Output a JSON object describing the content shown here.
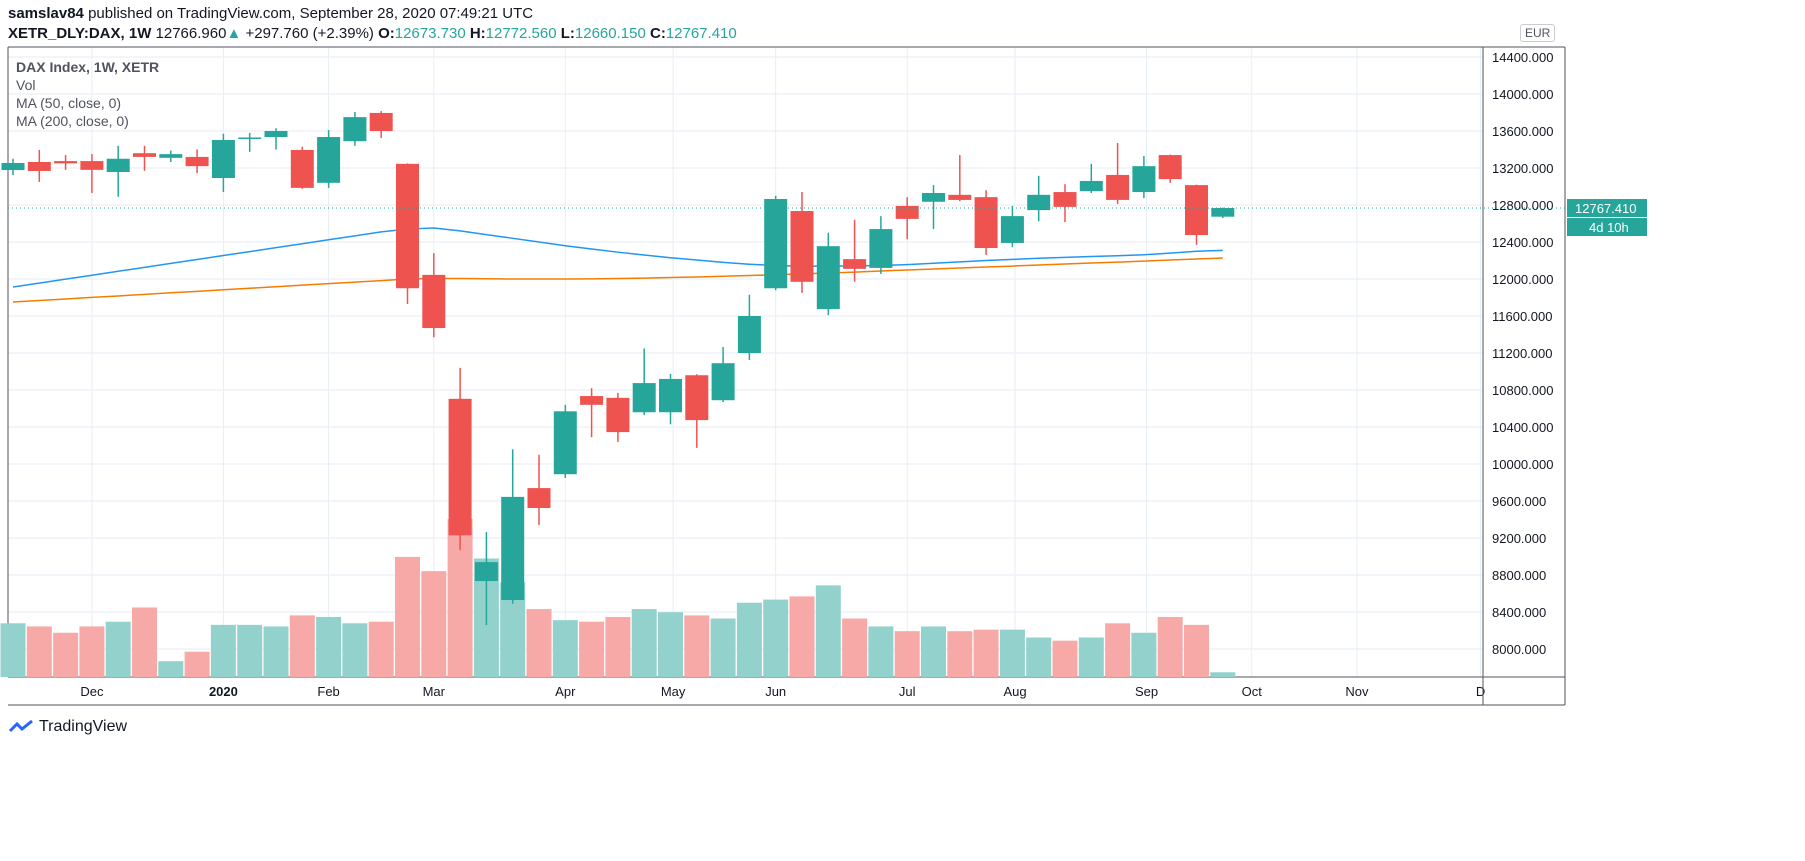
{
  "header": {
    "author": "samslav84",
    "published_text": "published on TradingView.com, September 28, 2020 07:49:21 UTC",
    "symbol": "XETR_DLY:DAX, 1W",
    "last": "12766.960",
    "change": "+297.760 (+2.39%)",
    "o_label": "O:",
    "o": "12673.730",
    "h_label": "H:",
    "h": "12772.560",
    "l_label": "L:",
    "l": "12660.150",
    "c_label": "C:",
    "c": "12767.410",
    "up_icon": "triangle-up-icon"
  },
  "legend": {
    "title": "DAX Index, 1W, XETR",
    "vol": "Vol",
    "ma50": "MA (50, close, 0)",
    "ma200": "MA (200, close, 0)"
  },
  "currency": "EUR",
  "last_price_label": "12767.410",
  "countdown": "4d 10h",
  "footer": {
    "brand": "TradingView"
  },
  "colors": {
    "up": "#26a69a",
    "down": "#ef5350",
    "vol_up": "#93d2cc",
    "vol_down": "#f7a9a7",
    "ma50": "#2196f3",
    "ma200": "#f57c00",
    "grid": "#e6eef5"
  },
  "chart_data": {
    "type": "candlestick",
    "interval": "1W",
    "ylim": [
      7698,
      14508
    ],
    "y_ticks": [
      "14400.000",
      "14000.000",
      "13600.000",
      "13200.000",
      "12800.000",
      "12400.000",
      "12000.000",
      "11600.000",
      "11200.000",
      "10800.000",
      "10400.000",
      "10000.000",
      "9600.000",
      "9200.000",
      "8800.000",
      "8400.000",
      "8000.000"
    ],
    "y_tick_values": [
      14400,
      14000,
      13600,
      13200,
      12800,
      12400,
      12000,
      11600,
      11200,
      10800,
      10400,
      10000,
      9600,
      9200,
      8800,
      8400,
      8000
    ],
    "x_ticks": [
      {
        "label": "Dec",
        "bar": 3
      },
      {
        "label": "2020",
        "bar": 8,
        "bold": true
      },
      {
        "label": "Feb",
        "bar": 12
      },
      {
        "label": "Mar",
        "bar": 16
      },
      {
        "label": "Apr",
        "bar": 21
      },
      {
        "label": "May",
        "bar": 25.1
      },
      {
        "label": "Jun",
        "bar": 29
      },
      {
        "label": "Jul",
        "bar": 34
      },
      {
        "label": "Aug",
        "bar": 38.1
      },
      {
        "label": "Sep",
        "bar": 43.1
      },
      {
        "label": "Oct",
        "bar": 47.1
      },
      {
        "label": "Nov",
        "bar": 51.1
      },
      {
        "label": "D",
        "bar": 55.8
      }
    ],
    "grid": true,
    "ohlc": [
      [
        13178,
        13300,
        13124,
        13254
      ],
      [
        13265,
        13395,
        13050,
        13168
      ],
      [
        13275,
        13340,
        13180,
        13250
      ],
      [
        13275,
        13350,
        12930,
        13180
      ],
      [
        13157,
        13440,
        12890,
        13300
      ],
      [
        13360,
        13440,
        13170,
        13320
      ],
      [
        13310,
        13390,
        13265,
        13350
      ],
      [
        13320,
        13400,
        13145,
        13220
      ],
      [
        13092,
        13570,
        12940,
        13503
      ],
      [
        13525,
        13580,
        13375,
        13530
      ],
      [
        13535,
        13630,
        13400,
        13600
      ],
      [
        13395,
        13430,
        12975,
        12985
      ],
      [
        13040,
        13610,
        12985,
        13535
      ],
      [
        13490,
        13805,
        13440,
        13750
      ],
      [
        13795,
        13815,
        13525,
        13600
      ],
      [
        13245,
        13250,
        11730,
        11900
      ],
      [
        12045,
        12280,
        11370,
        11470
      ],
      [
        10705,
        11040,
        9070,
        9230
      ],
      [
        8735,
        9265,
        8260,
        8940
      ],
      [
        8530,
        10160,
        8490,
        9645
      ],
      [
        9740,
        10100,
        9340,
        9525
      ],
      [
        9890,
        10640,
        9850,
        10570
      ],
      [
        10735,
        10820,
        10290,
        10640
      ],
      [
        10715,
        10770,
        10240,
        10345
      ],
      [
        10560,
        11250,
        10530,
        10875
      ],
      [
        10560,
        10975,
        10430,
        10920
      ],
      [
        10960,
        10970,
        10175,
        10475
      ],
      [
        10690,
        11265,
        10670,
        11090
      ],
      [
        11200,
        11830,
        11125,
        11600
      ],
      [
        11900,
        12900,
        11880,
        12865
      ],
      [
        12735,
        12940,
        11850,
        11970
      ],
      [
        11675,
        12500,
        11610,
        12355
      ],
      [
        12215,
        12640,
        11970,
        12110
      ],
      [
        12120,
        12680,
        12055,
        12540
      ],
      [
        12790,
        12885,
        12430,
        12650
      ],
      [
        12835,
        13015,
        12540,
        12930
      ],
      [
        12910,
        13340,
        12840,
        12855
      ],
      [
        12885,
        12960,
        12260,
        12335
      ],
      [
        12390,
        12790,
        12345,
        12680
      ],
      [
        12745,
        13115,
        12625,
        12910
      ],
      [
        12940,
        13025,
        12615,
        12780
      ],
      [
        12950,
        13245,
        12930,
        13060
      ],
      [
        13125,
        13470,
        12810,
        12855
      ],
      [
        12940,
        13330,
        12875,
        13220
      ],
      [
        13340,
        13345,
        13040,
        13080
      ],
      [
        13015,
        13020,
        12370,
        12475
      ],
      [
        12673.73,
        12772.56,
        12660.15,
        12767.41
      ]
    ],
    "volume_relative_pct": [
      34,
      32,
      28,
      32,
      35,
      44,
      10,
      16,
      33,
      33,
      32,
      39,
      38,
      34,
      35,
      76,
      67,
      100,
      75,
      60,
      43,
      36,
      35,
      38,
      43,
      41,
      39,
      37,
      47,
      49,
      51,
      58,
      37,
      32,
      29,
      32,
      29,
      30,
      30,
      25,
      23,
      25,
      34,
      28,
      38,
      33,
      3
    ],
    "ma50": [
      11914,
      11956,
      11999,
      12041,
      12084,
      12126,
      12169,
      12211,
      12254,
      12296,
      12339,
      12381,
      12424,
      12466,
      12509,
      12540,
      12551,
      12520,
      12480,
      12440,
      12400,
      12360,
      12325,
      12290,
      12260,
      12230,
      12205,
      12180,
      12160,
      12145,
      12140,
      12140,
      12142,
      12146,
      12155,
      12170,
      12185,
      12200,
      12212,
      12224,
      12234,
      12243,
      12252,
      12262,
      12280,
      12300,
      12310
    ],
    "ma200": [
      11751,
      11768,
      11784,
      11801,
      11817,
      11834,
      11851,
      11867,
      11884,
      11900,
      11917,
      11934,
      11950,
      11967,
      11983,
      12000,
      12005,
      12005,
      12003,
      12000,
      12000,
      12000,
      12002,
      12006,
      12010,
      12016,
      12022,
      12030,
      12038,
      12046,
      12055,
      12065,
      12075,
      12087,
      12098,
      12108,
      12119,
      12130,
      12140,
      12151,
      12162,
      12173,
      12183,
      12194,
      12205,
      12216,
      12227
    ],
    "last_close": 12767.41
  }
}
